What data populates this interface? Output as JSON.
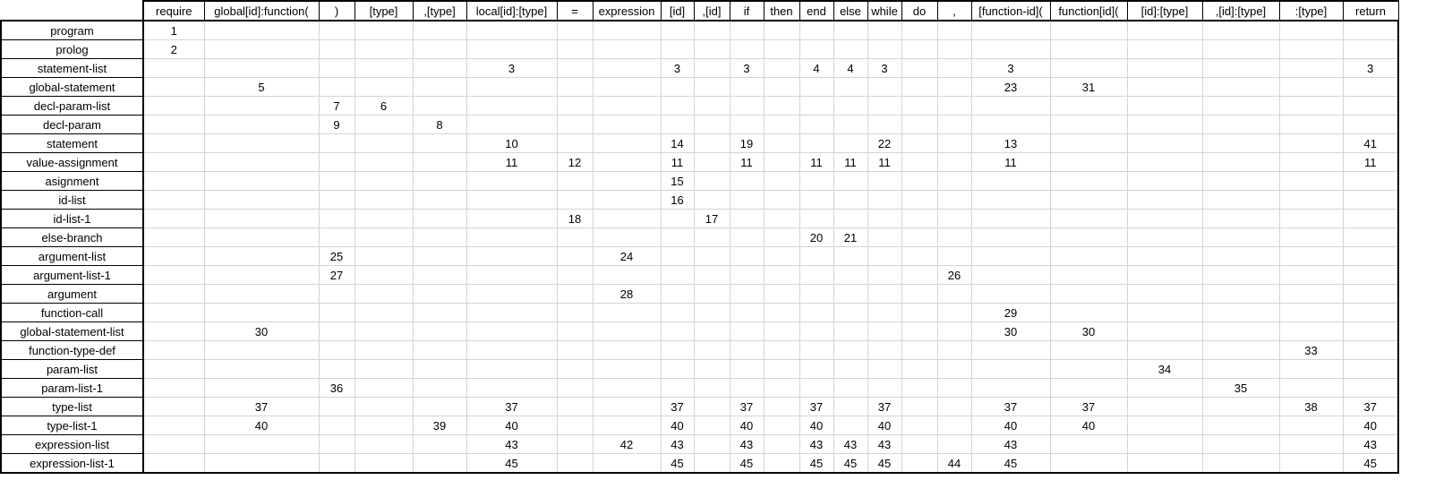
{
  "columns": [
    "require",
    "global[id]:function(",
    ")",
    "[type]",
    ",[type]",
    "local[id]:[type]",
    "=",
    "expression",
    "[id]",
    ",[id]",
    "if",
    "then",
    "end",
    "else",
    "while",
    "do",
    ",",
    "[function-id](",
    "function[id](",
    "[id]:[type]",
    ",[id]:[type]",
    ":[type]",
    "return"
  ],
  "rows": [
    {
      "name": "program",
      "cells": [
        "1",
        "",
        "",
        "",
        "",
        "",
        "",
        "",
        "",
        "",
        "",
        "",
        "",
        "",
        "",
        "",
        "",
        "",
        "",
        "",
        "",
        "",
        ""
      ]
    },
    {
      "name": "prolog",
      "cells": [
        "2",
        "",
        "",
        "",
        "",
        "",
        "",
        "",
        "",
        "",
        "",
        "",
        "",
        "",
        "",
        "",
        "",
        "",
        "",
        "",
        "",
        "",
        ""
      ]
    },
    {
      "name": "statement-list",
      "cells": [
        "",
        "",
        "",
        "",
        "",
        "3",
        "",
        "",
        "3",
        "",
        "3",
        "",
        "4",
        "4",
        "3",
        "",
        "",
        "3",
        "",
        "",
        "",
        "",
        "3"
      ]
    },
    {
      "name": "global-statement",
      "cells": [
        "",
        "5",
        "",
        "",
        "",
        "",
        "",
        "",
        "",
        "",
        "",
        "",
        "",
        "",
        "",
        "",
        "",
        "23",
        "31",
        "",
        "",
        "",
        ""
      ]
    },
    {
      "name": "decl-param-list",
      "cells": [
        "",
        "",
        "7",
        "6",
        "",
        "",
        "",
        "",
        "",
        "",
        "",
        "",
        "",
        "",
        "",
        "",
        "",
        "",
        "",
        "",
        "",
        "",
        ""
      ]
    },
    {
      "name": "decl-param",
      "cells": [
        "",
        "",
        "9",
        "",
        "8",
        "",
        "",
        "",
        "",
        "",
        "",
        "",
        "",
        "",
        "",
        "",
        "",
        "",
        "",
        "",
        "",
        "",
        ""
      ]
    },
    {
      "name": "statement",
      "cells": [
        "",
        "",
        "",
        "",
        "",
        "10",
        "",
        "",
        "14",
        "",
        "19",
        "",
        "",
        "",
        "22",
        "",
        "",
        "13",
        "",
        "",
        "",
        "",
        "41"
      ]
    },
    {
      "name": "value-assignment",
      "cells": [
        "",
        "",
        "",
        "",
        "",
        "11",
        "12",
        "",
        "11",
        "",
        "11",
        "",
        "11",
        "11",
        "11",
        "",
        "",
        "11",
        "",
        "",
        "",
        "",
        "11"
      ]
    },
    {
      "name": "asignment",
      "cells": [
        "",
        "",
        "",
        "",
        "",
        "",
        "",
        "",
        "15",
        "",
        "",
        "",
        "",
        "",
        "",
        "",
        "",
        "",
        "",
        "",
        "",
        "",
        ""
      ]
    },
    {
      "name": "id-list",
      "cells": [
        "",
        "",
        "",
        "",
        "",
        "",
        "",
        "",
        "16",
        "",
        "",
        "",
        "",
        "",
        "",
        "",
        "",
        "",
        "",
        "",
        "",
        "",
        ""
      ]
    },
    {
      "name": "id-list-1",
      "cells": [
        "",
        "",
        "",
        "",
        "",
        "",
        "18",
        "",
        "",
        "17",
        "",
        "",
        "",
        "",
        "",
        "",
        "",
        "",
        "",
        "",
        "",
        "",
        ""
      ]
    },
    {
      "name": "else-branch",
      "cells": [
        "",
        "",
        "",
        "",
        "",
        "",
        "",
        "",
        "",
        "",
        "",
        "",
        "20",
        "21",
        "",
        "",
        "",
        "",
        "",
        "",
        "",
        "",
        ""
      ]
    },
    {
      "name": "argument-list",
      "cells": [
        "",
        "",
        "25",
        "",
        "",
        "",
        "",
        "24",
        "",
        "",
        "",
        "",
        "",
        "",
        "",
        "",
        "",
        "",
        "",
        "",
        "",
        "",
        ""
      ]
    },
    {
      "name": "argument-list-1",
      "cells": [
        "",
        "",
        "27",
        "",
        "",
        "",
        "",
        "",
        "",
        "",
        "",
        "",
        "",
        "",
        "",
        "",
        "26",
        "",
        "",
        "",
        "",
        "",
        ""
      ]
    },
    {
      "name": "argument",
      "cells": [
        "",
        "",
        "",
        "",
        "",
        "",
        "",
        "28",
        "",
        "",
        "",
        "",
        "",
        "",
        "",
        "",
        "",
        "",
        "",
        "",
        "",
        "",
        ""
      ]
    },
    {
      "name": "function-call",
      "cells": [
        "",
        "",
        "",
        "",
        "",
        "",
        "",
        "",
        "",
        "",
        "",
        "",
        "",
        "",
        "",
        "",
        "",
        "29",
        "",
        "",
        "",
        "",
        ""
      ]
    },
    {
      "name": "global-statement-list",
      "cells": [
        "",
        "30",
        "",
        "",
        "",
        "",
        "",
        "",
        "",
        "",
        "",
        "",
        "",
        "",
        "",
        "",
        "",
        "30",
        "30",
        "",
        "",
        "",
        ""
      ]
    },
    {
      "name": "function-type-def",
      "cells": [
        "",
        "",
        "",
        "",
        "",
        "",
        "",
        "",
        "",
        "",
        "",
        "",
        "",
        "",
        "",
        "",
        "",
        "",
        "",
        "",
        "",
        "33",
        ""
      ]
    },
    {
      "name": "param-list",
      "cells": [
        "",
        "",
        "",
        "",
        "",
        "",
        "",
        "",
        "",
        "",
        "",
        "",
        "",
        "",
        "",
        "",
        "",
        "",
        "",
        "34",
        "",
        "",
        ""
      ]
    },
    {
      "name": "param-list-1",
      "cells": [
        "",
        "",
        "36",
        "",
        "",
        "",
        "",
        "",
        "",
        "",
        "",
        "",
        "",
        "",
        "",
        "",
        "",
        "",
        "",
        "",
        "35",
        "",
        ""
      ]
    },
    {
      "name": "type-list",
      "cells": [
        "",
        "37",
        "",
        "",
        "",
        "37",
        "",
        "",
        "37",
        "",
        "37",
        "",
        "37",
        "",
        "37",
        "",
        "",
        "37",
        "37",
        "",
        "",
        "38",
        "37"
      ]
    },
    {
      "name": "type-list-1",
      "cells": [
        "",
        "40",
        "",
        "",
        "39",
        "40",
        "",
        "",
        "40",
        "",
        "40",
        "",
        "40",
        "",
        "40",
        "",
        "",
        "40",
        "40",
        "",
        "",
        "",
        "40"
      ]
    },
    {
      "name": "expression-list",
      "cells": [
        "",
        "",
        "",
        "",
        "",
        "43",
        "",
        "42",
        "43",
        "",
        "43",
        "",
        "43",
        "43",
        "43",
        "",
        "",
        "43",
        "",
        "",
        "",
        "",
        "43"
      ]
    },
    {
      "name": "expression-list-1",
      "cells": [
        "",
        "",
        "",
        "",
        "",
        "45",
        "",
        "",
        "45",
        "",
        "45",
        "",
        "45",
        "45",
        "45",
        "",
        "44",
        "45",
        "",
        "",
        "",
        "",
        "45"
      ]
    }
  ]
}
